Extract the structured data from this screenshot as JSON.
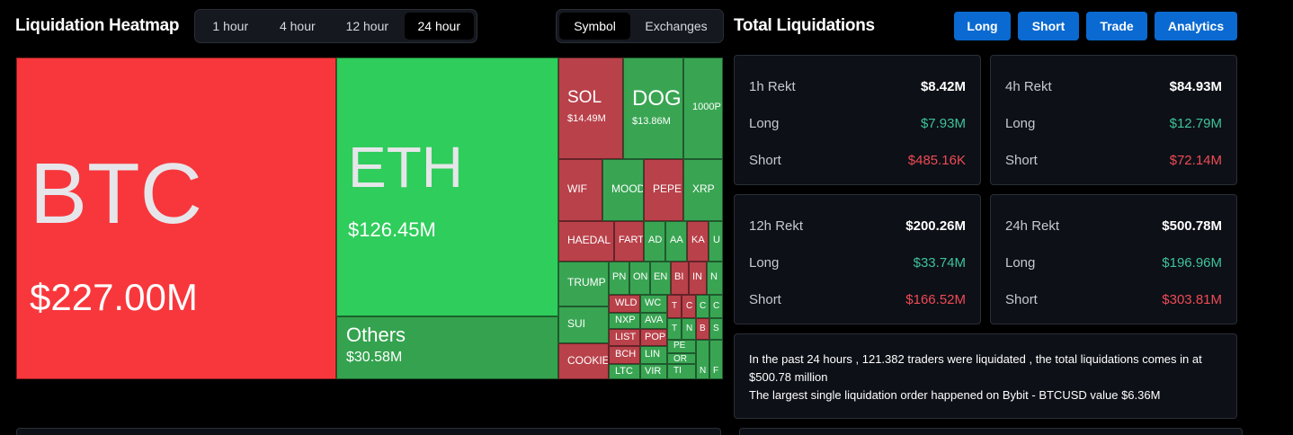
{
  "heatmap_title": "Liquidation Heatmap",
  "time_tabs": [
    "1 hour",
    "4 hour",
    "12 hour",
    "24 hour"
  ],
  "active_time_tab": "24 hour",
  "view_tabs": [
    "Symbol",
    "Exchanges"
  ],
  "active_view_tab": "Symbol",
  "total_title": "Total Liquidations",
  "action_buttons": [
    "Long",
    "Short",
    "Trade",
    "Analytics"
  ],
  "colors": {
    "red": "#f8373c",
    "bright_green": "#2fcd5b",
    "green": "#34a24e",
    "tile_red": "#b9414a",
    "tile_green": "#39a553",
    "accent": "#0a6ad1",
    "long": "#3ec39a",
    "short": "#ef4a55"
  },
  "tiles": [
    {
      "sym": "BTC",
      "val": "$227.00M"
    },
    {
      "sym": "ETH",
      "val": "$126.45M"
    },
    {
      "sym": "Others",
      "val": "$30.58M"
    },
    {
      "sym": "SOL",
      "val": "$14.49M"
    },
    {
      "sym": "DOGE",
      "val": "$13.86M"
    },
    {
      "sym": "1000P",
      "val": ""
    },
    {
      "sym": "WIF",
      "val": ""
    },
    {
      "sym": "MOOD",
      "val": ""
    },
    {
      "sym": "PEPE",
      "val": ""
    },
    {
      "sym": "XRP",
      "val": ""
    },
    {
      "sym": "HAEDAL",
      "val": ""
    },
    {
      "sym": "FARTC",
      "val": ""
    },
    {
      "sym": "AD",
      "val": ""
    },
    {
      "sym": "AA",
      "val": ""
    },
    {
      "sym": "KA",
      "val": ""
    },
    {
      "sym": "U",
      "val": ""
    },
    {
      "sym": "TRUMP",
      "val": ""
    },
    {
      "sym": "PN",
      "val": ""
    },
    {
      "sym": "ON",
      "val": ""
    },
    {
      "sym": "EN",
      "val": ""
    },
    {
      "sym": "BI",
      "val": ""
    },
    {
      "sym": "IN",
      "val": ""
    },
    {
      "sym": "N",
      "val": ""
    },
    {
      "sym": "SUI",
      "val": ""
    },
    {
      "sym": "WLD",
      "val": ""
    },
    {
      "sym": "WC",
      "val": ""
    },
    {
      "sym": "T",
      "val": ""
    },
    {
      "sym": "C",
      "val": ""
    },
    {
      "sym": "C",
      "val": ""
    },
    {
      "sym": "C",
      "val": ""
    },
    {
      "sym": "NXP",
      "val": ""
    },
    {
      "sym": "AVA",
      "val": ""
    },
    {
      "sym": "T",
      "val": ""
    },
    {
      "sym": "N",
      "val": ""
    },
    {
      "sym": "B",
      "val": ""
    },
    {
      "sym": "S",
      "val": ""
    },
    {
      "sym": "LIST",
      "val": ""
    },
    {
      "sym": "POP",
      "val": ""
    },
    {
      "sym": "COOKIE",
      "val": ""
    },
    {
      "sym": "BCH",
      "val": ""
    },
    {
      "sym": "LIN",
      "val": ""
    },
    {
      "sym": "PE",
      "val": ""
    },
    {
      "sym": "OR",
      "val": ""
    },
    {
      "sym": "LTC",
      "val": ""
    },
    {
      "sym": "VIR",
      "val": ""
    },
    {
      "sym": "TI",
      "val": ""
    },
    {
      "sym": "N",
      "val": ""
    },
    {
      "sym": "F",
      "val": ""
    }
  ],
  "stats": [
    {
      "label": "1h Rekt",
      "total": "$8.42M",
      "long_label": "Long",
      "long": "$7.93M",
      "short_label": "Short",
      "short": "$485.16K"
    },
    {
      "label": "4h Rekt",
      "total": "$84.93M",
      "long_label": "Long",
      "long": "$12.79M",
      "short_label": "Short",
      "short": "$72.14M"
    },
    {
      "label": "12h Rekt",
      "total": "$200.26M",
      "long_label": "Long",
      "long": "$33.74M",
      "short_label": "Short",
      "short": "$166.52M"
    },
    {
      "label": "24h Rekt",
      "total": "$500.78M",
      "long_label": "Long",
      "long": "$196.96M",
      "short_label": "Short",
      "short": "$303.81M"
    }
  ],
  "summary": {
    "line1": "In the past 24 hours , 121.382 traders were liquidated , the total liquidations comes in at $500.78 million",
    "line2": "The largest single liquidation order happened on Bybit - BTCUSD value $6.36M"
  }
}
